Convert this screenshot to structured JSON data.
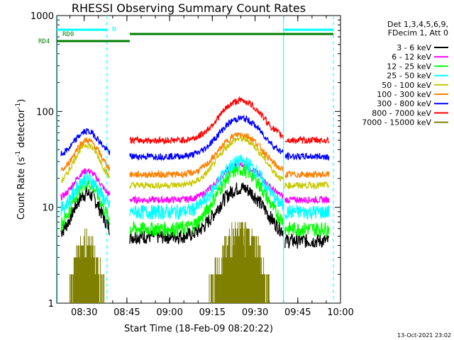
{
  "chart_data": {
    "type": "line",
    "title": "RHESSI Observing Summary Count Rates",
    "xlabel": "Start Time (18-Feb-09 08:20:22)",
    "ylabel_main": "Count Rate (s",
    "ylabel_sup1": "-1",
    "ylabel_mid": " detector",
    "ylabel_sup2": "-1",
    "ylabel_end": ")",
    "yscale": "log",
    "ylim": [
      1,
      1000
    ],
    "xlim": [
      "08:20:22",
      "10:00:00"
    ],
    "x_ticks": [
      "08:30",
      "08:45",
      "09:00",
      "09:15",
      "09:30",
      "09:45",
      "10:00"
    ],
    "y_ticks": [
      "1",
      "10",
      "100",
      "1000"
    ],
    "legend_header": [
      "Det 1,3,4,5,6,9,",
      "FDecim 1, Att 0"
    ],
    "footer_date": "13-Oct-2021 23:02",
    "flag_labels": {
      "rd0": "RD0",
      "rd4": "RD4",
      "n": "N"
    },
    "series": [
      {
        "name": "3 - 6 keV",
        "color": "#000000",
        "base": 5,
        "peak1": 14,
        "peak2": 16
      },
      {
        "name": "6 - 12 keV",
        "color": "#ff00ff",
        "base": 12,
        "peak1": 24,
        "peak2": 28
      },
      {
        "name": "12 - 25 keV",
        "color": "#00ff00",
        "base": 6,
        "peak1": 18,
        "peak2": 25
      },
      {
        "name": "25 - 50 keV",
        "color": "#00ffff",
        "base": 9,
        "peak1": 20,
        "peak2": 30
      },
      {
        "name": "50 - 100 keV",
        "color": "#c8c800",
        "base": 17,
        "peak1": 45,
        "peak2": 52
      },
      {
        "name": "100 - 300 keV",
        "color": "#ff8000",
        "base": 22,
        "peak1": 50,
        "peak2": 58
      },
      {
        "name": "300 - 800 keV",
        "color": "#0000ff",
        "base": 34,
        "peak1": 62,
        "peak2": 85
      },
      {
        "name": "800 - 7000 keV",
        "color": "#ff0000",
        "base": 50,
        "peak1": 0,
        "peak2": 130
      },
      {
        "name": "7000 - 15000 keV",
        "color": "#808000",
        "base": 1,
        "peak1": 4,
        "peak2": 5
      }
    ]
  }
}
